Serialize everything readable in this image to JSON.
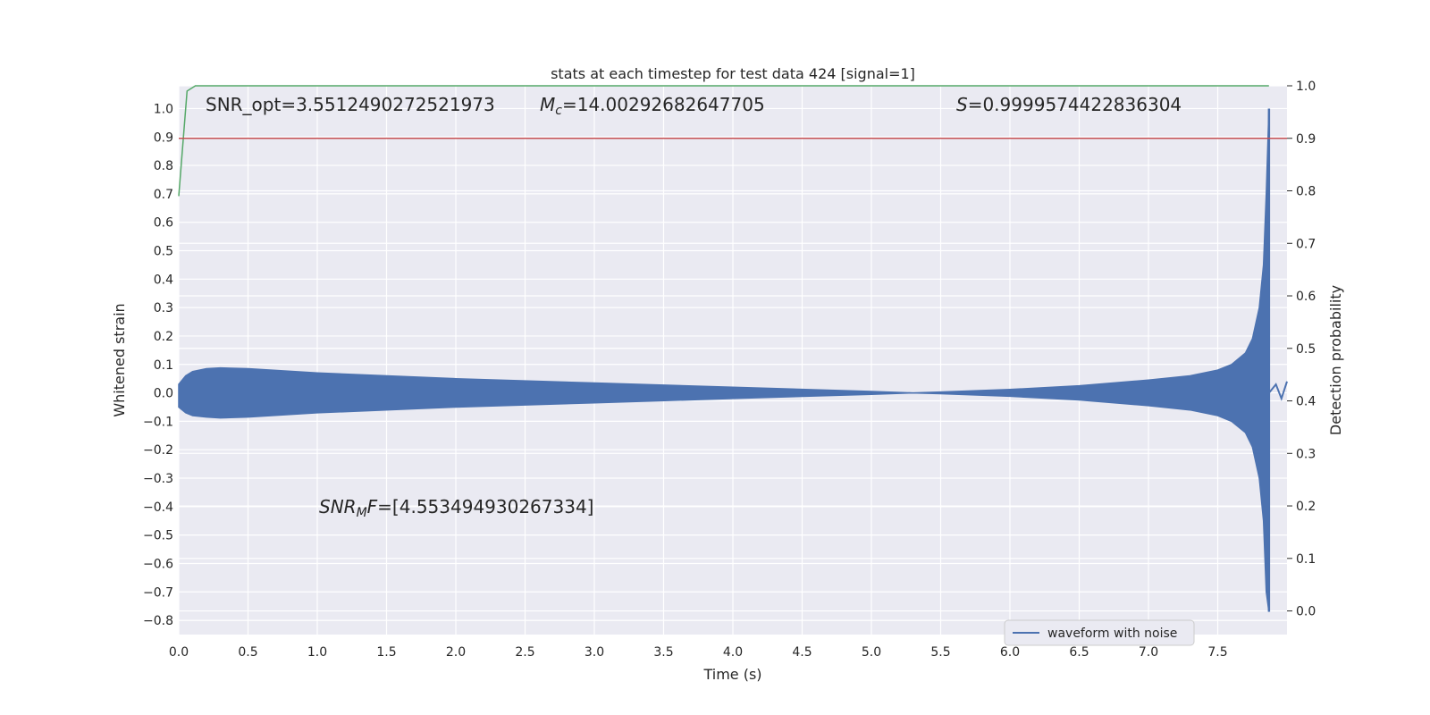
{
  "chart_data": {
    "type": "line",
    "title": "stats at each timestep for test data 424 [signal=1]",
    "xlabel": "Time (s)",
    "ylabel_left": "Whitened strain",
    "ylabel_right": "Detection probability",
    "xlim": [
      0.0,
      8.0
    ],
    "ylim_left": [
      -0.85,
      1.08
    ],
    "ylim_right": [
      -0.045,
      1.0
    ],
    "x_ticks": [
      "0.0",
      "0.5",
      "1.0",
      "1.5",
      "2.0",
      "2.5",
      "3.0",
      "3.5",
      "4.0",
      "4.5",
      "5.0",
      "5.5",
      "6.0",
      "6.5",
      "7.0",
      "7.5"
    ],
    "y_ticks_left": [
      "1.0",
      "0.9",
      "0.8",
      "0.7",
      "0.6",
      "0.5",
      "0.4",
      "0.3",
      "0.2",
      "0.1",
      "0.0",
      "−0.1",
      "−0.2",
      "−0.3",
      "−0.4",
      "−0.5",
      "−0.6",
      "−0.7",
      "−0.8"
    ],
    "y_ticks_right": [
      "1.0",
      "0.9",
      "0.8",
      "0.7",
      "0.6",
      "0.5",
      "0.4",
      "0.3",
      "0.2",
      "0.1",
      "0.0"
    ],
    "grid": true,
    "legend_position": "bottom-right",
    "series": [
      {
        "name": "waveform with noise",
        "axis": "left",
        "color": "#4c72b0",
        "kind": "envelope",
        "x": [
          0.0,
          0.05,
          0.1,
          0.2,
          0.3,
          0.5,
          1.0,
          2.0,
          3.0,
          4.0,
          5.0,
          5.3,
          5.5,
          6.0,
          6.5,
          7.0,
          7.3,
          7.5,
          7.6,
          7.7,
          7.75,
          7.8,
          7.83,
          7.85,
          7.87
        ],
        "upper": [
          0.03,
          0.06,
          0.075,
          0.085,
          0.088,
          0.085,
          0.07,
          0.05,
          0.035,
          0.02,
          0.005,
          0.0,
          0.003,
          0.012,
          0.025,
          0.045,
          0.06,
          0.08,
          0.1,
          0.14,
          0.19,
          0.3,
          0.45,
          0.7,
          1.0
        ],
        "lower": [
          -0.05,
          -0.07,
          -0.08,
          -0.085,
          -0.088,
          -0.085,
          -0.07,
          -0.05,
          -0.035,
          -0.02,
          -0.005,
          0.0,
          -0.003,
          -0.012,
          -0.025,
          -0.045,
          -0.06,
          -0.08,
          -0.1,
          -0.14,
          -0.19,
          -0.3,
          -0.45,
          -0.7,
          -0.77
        ]
      },
      {
        "name": "",
        "axis": "right",
        "color": "#55a868",
        "kind": "line",
        "x": [
          0.0,
          0.06,
          0.12,
          0.2,
          1.0,
          2.0,
          3.0,
          4.0,
          5.0,
          6.0,
          7.0,
          7.87
        ],
        "y": [
          0.79,
          0.99,
          1.0,
          1.0,
          1.0,
          1.0,
          1.0,
          1.0,
          1.0,
          1.0,
          1.0,
          1.0
        ]
      },
      {
        "name": "",
        "axis": "right",
        "color": "#c44e52",
        "kind": "line",
        "x": [
          0.0,
          8.0
        ],
        "y": [
          0.9,
          0.9
        ]
      }
    ],
    "annotations": {
      "snr_opt": "SNR_opt=3.5512490272521973",
      "mc_sym": "M",
      "mc_sub": "c",
      "mc_val": "=14.00292682647705",
      "s_sym": "S",
      "s_val": "=0.9999574422836304",
      "snrmf_sym": "SNR",
      "snrmf_sub": "M",
      "snrmf_sym2": "F",
      "snrmf_val": "=[4.553494930267334]"
    }
  }
}
